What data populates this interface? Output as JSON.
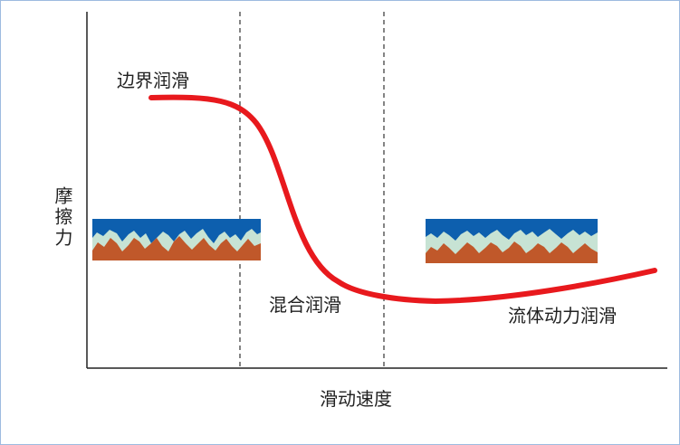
{
  "labels": {
    "boundary": "边界润滑",
    "mixed": "混合润滑",
    "hydrodynamic": "流体动力润滑",
    "x_axis": "滑动速度",
    "y_axis": "摩擦力"
  },
  "colors": {
    "curve": "#e8191d",
    "lubricant": "#0d5fae",
    "film": "#c7e3d4",
    "substrate": "#c0582a",
    "axis": "#222222",
    "divider": "#333333",
    "frame_border": "#9dbbe0"
  }
}
